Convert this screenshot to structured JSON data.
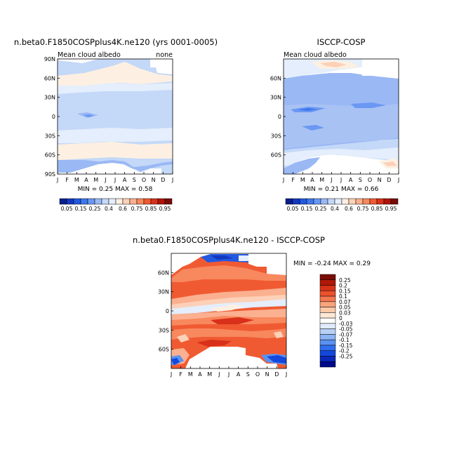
{
  "palette_albedo": [
    "#0a1e8c",
    "#1238c2",
    "#2358e0",
    "#3e78ee",
    "#6a98f2",
    "#9ab8f4",
    "#c4d8f8",
    "#e4eefc",
    "#fdf0e2",
    "#fdd0b8",
    "#fbb090",
    "#f8885e",
    "#f05a32",
    "#d8301a",
    "#b01408",
    "#7a0a04"
  ],
  "palette_diff": [
    "#000a8a",
    "#0a28b8",
    "#1448dc",
    "#2e6ef0",
    "#5a92f2",
    "#8cb4f4",
    "#b8d0f6",
    "#e0ebfc",
    "#ffffff",
    "#fde8d6",
    "#fbc8a8",
    "#f8a47c",
    "#f47850",
    "#ec522c",
    "#d63218",
    "#b01808",
    "#7a0c04"
  ],
  "panels": {
    "model": {
      "title": "n.beta0.F1850COSPplus4K.ne120 (yrs 0001-0005)",
      "left_label": "Mean cloud albedo",
      "right_label": "none",
      "stats": "MIN =    0.25 MAX =    0.58"
    },
    "obs": {
      "title": "ISCCP-COSP",
      "left_label": "Mean cloud albedo",
      "stats": "MIN =    0.21 MAX =    0.66"
    },
    "diff": {
      "title": "n.beta0.F1850COSPplus4K.ne120  -  ISCCP-COSP",
      "stats": "MIN =  -0.24 MAX =    0.29"
    }
  },
  "chart_data": [
    {
      "type": "heatmap",
      "title": "n.beta0.F1850COSPplus4K.ne120 (yrs 0001-0005)",
      "variable": "Mean cloud albedo",
      "x_ticks": [
        "J",
        "F",
        "M",
        "A",
        "M",
        "J",
        "J",
        "A",
        "S",
        "O",
        "N",
        "D",
        "J"
      ],
      "y_ticks": [
        "90N",
        "60N",
        "30N",
        "0",
        "30S",
        "60S",
        "90S"
      ],
      "min": 0.25,
      "max": 0.58,
      "colorbar_labels": [
        "0.05",
        "0.15",
        "0.25",
        "0.4",
        "0.6",
        "0.75",
        "0.85",
        "0.95"
      ]
    },
    {
      "type": "heatmap",
      "title": "ISCCP-COSP",
      "variable": "Mean cloud albedo",
      "x_ticks": [
        "J",
        "F",
        "M",
        "A",
        "M",
        "J",
        "J",
        "A",
        "S",
        "O",
        "N",
        "D",
        "J"
      ],
      "y_ticks": [
        "60N",
        "30N",
        "0",
        "30S",
        "60S"
      ],
      "min": 0.21,
      "max": 0.66,
      "colorbar_labels": [
        "0.05",
        "0.15",
        "0.25",
        "0.4",
        "0.6",
        "0.75",
        "0.85",
        "0.95"
      ]
    },
    {
      "type": "heatmap",
      "title": "n.beta0.F1850COSPplus4K.ne120  -  ISCCP-COSP",
      "x_ticks": [
        "J",
        "F",
        "M",
        "A",
        "M",
        "J",
        "J",
        "A",
        "S",
        "O",
        "N",
        "D",
        "J"
      ],
      "y_ticks": [
        "60N",
        "30N",
        "0",
        "30S",
        "60S"
      ],
      "min": -0.24,
      "max": 0.29,
      "colorbar_labels": [
        "0.25",
        "0.2",
        "0.15",
        "0.1",
        "0.07",
        "0.05",
        "0.03",
        "0",
        "-0.03",
        "-0.05",
        "-0.07",
        "-0.1",
        "-0.15",
        "-0.2",
        "-0.25"
      ]
    }
  ]
}
